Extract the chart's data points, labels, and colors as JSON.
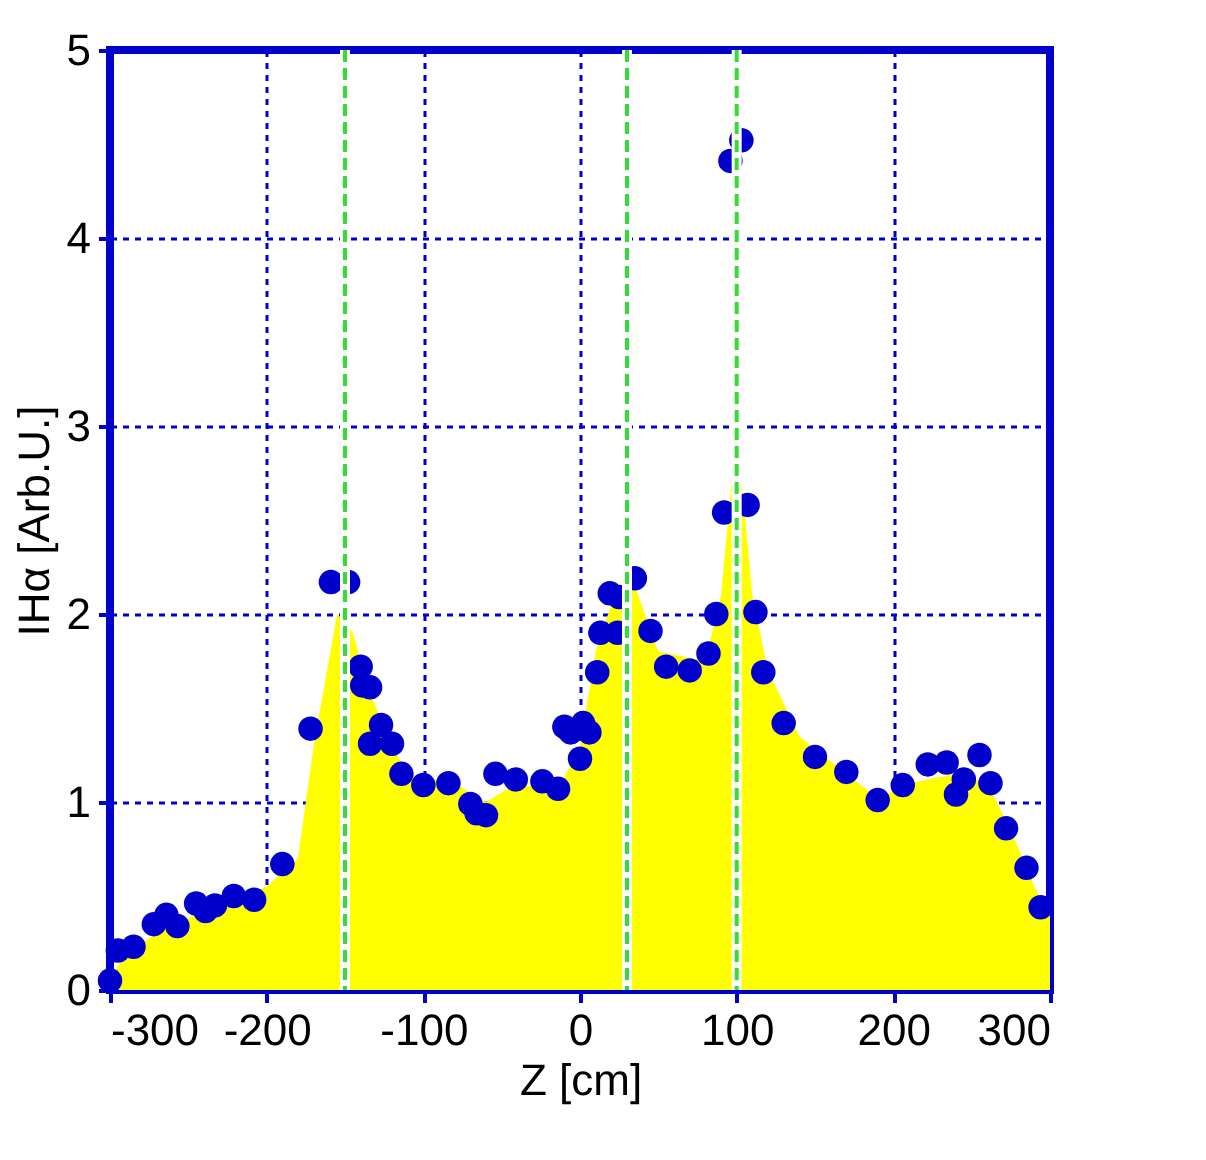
{
  "chart_data": {
    "type": "scatter",
    "xlabel": "Z [cm]",
    "ylabel": "IHα [Arb.U.]",
    "xlim": [
      -300,
      300
    ],
    "ylim": [
      0,
      5
    ],
    "xticks": [
      -300,
      -200,
      -100,
      0,
      100,
      200,
      300
    ],
    "yticks": [
      0,
      1,
      2,
      3,
      4,
      5
    ],
    "grid": true,
    "legend": false,
    "series": [
      {
        "type": "scatter",
        "marker": "circle",
        "color": "#0000cc",
        "x": [
          -300,
          -295,
          -285,
          -272,
          -264,
          -257,
          -245,
          -239,
          -233,
          -221,
          -208,
          -190,
          -172,
          -159,
          -148,
          -140,
          -139,
          -134,
          -127,
          -134,
          -120,
          -114,
          -100,
          -84,
          -70,
          -66,
          -60,
          -54,
          -41,
          -24,
          -14,
          -10,
          -6,
          2,
          6,
          0,
          11,
          13,
          19,
          24,
          25,
          35,
          45,
          55,
          70,
          82,
          87,
          92,
          96,
          103,
          107,
          112,
          117,
          130,
          150,
          170,
          190,
          206,
          222,
          234,
          240,
          245,
          255,
          262,
          272,
          285,
          294
        ],
        "values": [
          0.05,
          0.21,
          0.23,
          0.35,
          0.4,
          0.34,
          0.46,
          0.42,
          0.45,
          0.5,
          0.48,
          0.67,
          1.39,
          2.17,
          2.17,
          1.72,
          1.62,
          1.61,
          1.41,
          1.31,
          1.31,
          1.15,
          1.09,
          1.1,
          0.99,
          0.94,
          0.93,
          1.15,
          1.12,
          1.11,
          1.07,
          1.4,
          1.37,
          1.42,
          1.37,
          1.23,
          1.69,
          1.9,
          2.11,
          1.9,
          2.09,
          2.19,
          1.91,
          1.72,
          1.7,
          1.79,
          2.0,
          2.54,
          4.41,
          4.52,
          2.58,
          2.01,
          1.69,
          1.42,
          1.24,
          1.16,
          1.01,
          1.09,
          1.2,
          1.21,
          1.04,
          1.12,
          1.25,
          1.1,
          0.86,
          0.65,
          0.44
        ]
      },
      {
        "type": "area",
        "color": "#ffff00",
        "x": [
          -300,
          -290,
          -260,
          -230,
          -200,
          -180,
          -170,
          -155,
          -145,
          -135,
          -120,
          -110,
          -80,
          -60,
          -40,
          -15,
          0,
          10,
          20,
          35,
          50,
          80,
          90,
          100,
          110,
          120,
          140,
          170,
          190,
          210,
          240,
          260,
          275,
          290,
          300
        ],
        "values": [
          0.05,
          0.2,
          0.35,
          0.45,
          0.55,
          0.7,
          1.3,
          2.0,
          1.9,
          1.6,
          1.3,
          1.15,
          1.1,
          1.0,
          1.1,
          1.05,
          1.3,
          1.8,
          2.05,
          2.15,
          1.8,
          1.75,
          2.1,
          3.0,
          2.1,
          1.7,
          1.35,
          1.15,
          1.02,
          1.1,
          1.15,
          1.1,
          0.85,
          0.55,
          0.4
        ]
      }
    ],
    "ref_lines": [
      {
        "axis": "x",
        "value": -150,
        "color": "#33dd33",
        "line_style": "dashed"
      },
      {
        "axis": "x",
        "value": 30,
        "color": "#33dd33",
        "line_style": "dashed"
      },
      {
        "axis": "x",
        "value": 100,
        "color": "#33dd33",
        "line_style": "dashed"
      }
    ]
  }
}
